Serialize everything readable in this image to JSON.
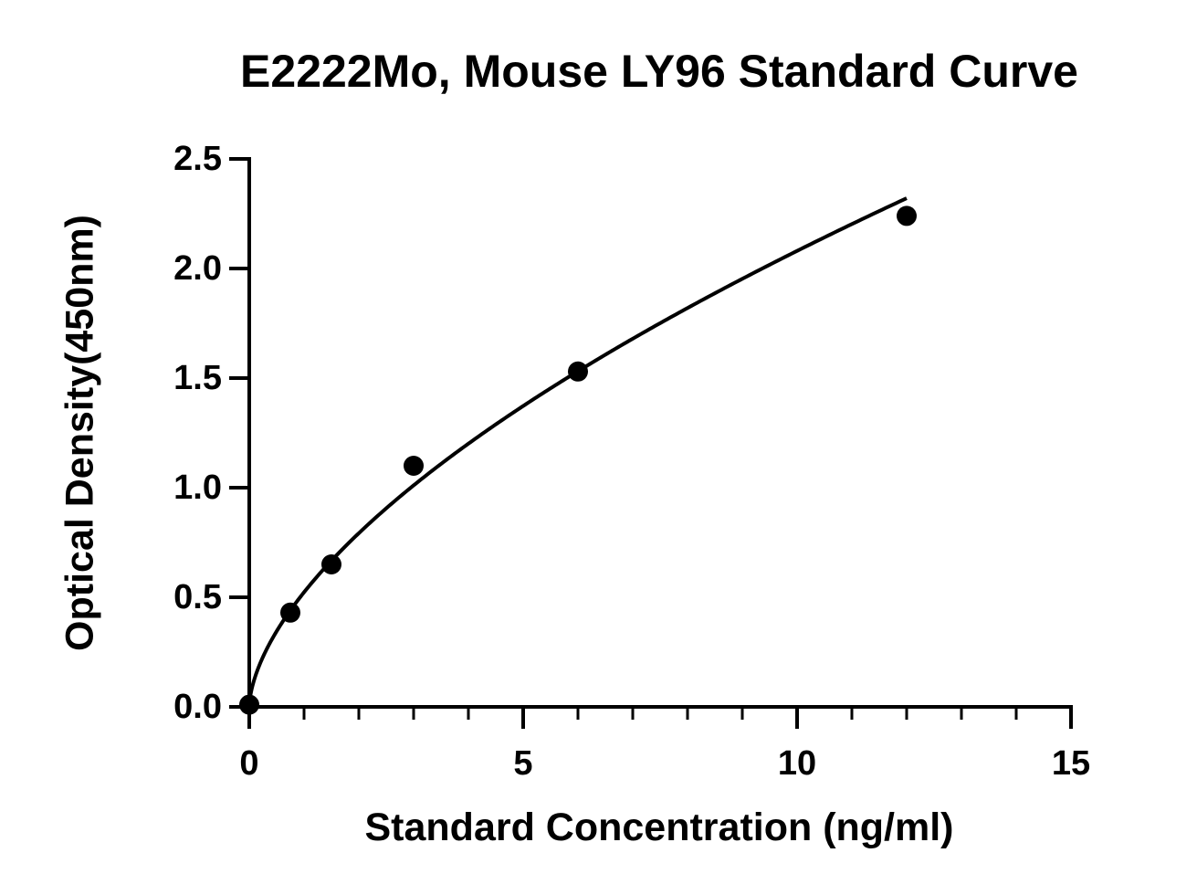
{
  "chart_data": {
    "type": "scatter",
    "title": "E2222Mo, Mouse LY96 Standard Curve",
    "xlabel": "Standard Concentration (ng/ml)",
    "ylabel": "Optical Density(450nm)",
    "xlim": [
      0,
      15
    ],
    "ylim": [
      0,
      2.5
    ],
    "x_major_ticks": [
      0,
      5,
      10,
      15
    ],
    "x_tick_labels": [
      "0",
      "5",
      "10",
      "15"
    ],
    "x_minor_step": 1,
    "y_major_ticks": [
      0,
      0.5,
      1.0,
      1.5,
      2.0,
      2.5
    ],
    "y_tick_labels": [
      "0.0",
      "0.5",
      "1.0",
      "1.5",
      "2.0",
      "2.5"
    ],
    "grid": false,
    "legend": "none",
    "series": [
      {
        "x": [
          0,
          0.75,
          1.5,
          3,
          6,
          12
        ],
        "y": [
          0.01,
          0.43,
          0.65,
          1.1,
          1.53,
          2.24
        ],
        "marker": "circle",
        "color": "#000000",
        "fit_curve": true
      }
    ]
  }
}
